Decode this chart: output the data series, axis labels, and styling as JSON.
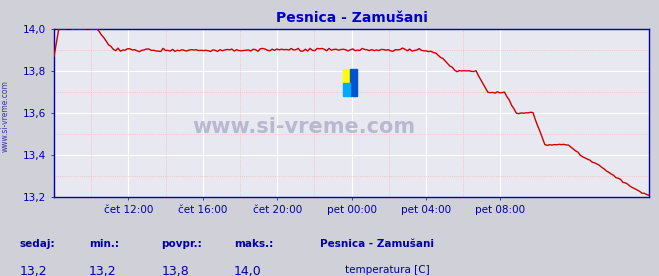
{
  "title": "Pesnica - Zamušani",
  "bg_color": "#d0d0d8",
  "plot_bg_color": "#e8e8f0",
  "line_color": "#cc0000",
  "grid_color_major": "#ffffff",
  "grid_color_minor": "#ffaaaa",
  "axis_color": "#0000aa",
  "title_color": "#0000cc",
  "ylim": [
    13.2,
    14.0
  ],
  "yticks": [
    13.2,
    13.4,
    13.6,
    13.8,
    14.0
  ],
  "yticks_minor": [
    13.3,
    13.5,
    13.7,
    13.9
  ],
  "xlabel_ticks": [
    "čet 12:00",
    "čet 16:00",
    "čet 20:00",
    "pet 00:00",
    "pet 04:00",
    "pet 08:00"
  ],
  "x_tick_positions": [
    0.125,
    0.25,
    0.375,
    0.5,
    0.625,
    0.75
  ],
  "x_tick_minor": [
    0.0625,
    0.1875,
    0.3125,
    0.4375,
    0.5625,
    0.6875
  ],
  "sedaj_label": "sedaj:",
  "min_label": "min.:",
  "povpr_label": "povpr.:",
  "maks_label": "maks.:",
  "sedaj_val": "13,2",
  "min_val": "13,2",
  "povpr_val": "13,8",
  "maks_val": "14,0",
  "legend_title": "Pesnica - Zamušani",
  "legend_series": "temperatura [C]",
  "legend_color": "#cc0000",
  "watermark": "www.si-vreme.com",
  "side_label": "www.si-vreme.com"
}
